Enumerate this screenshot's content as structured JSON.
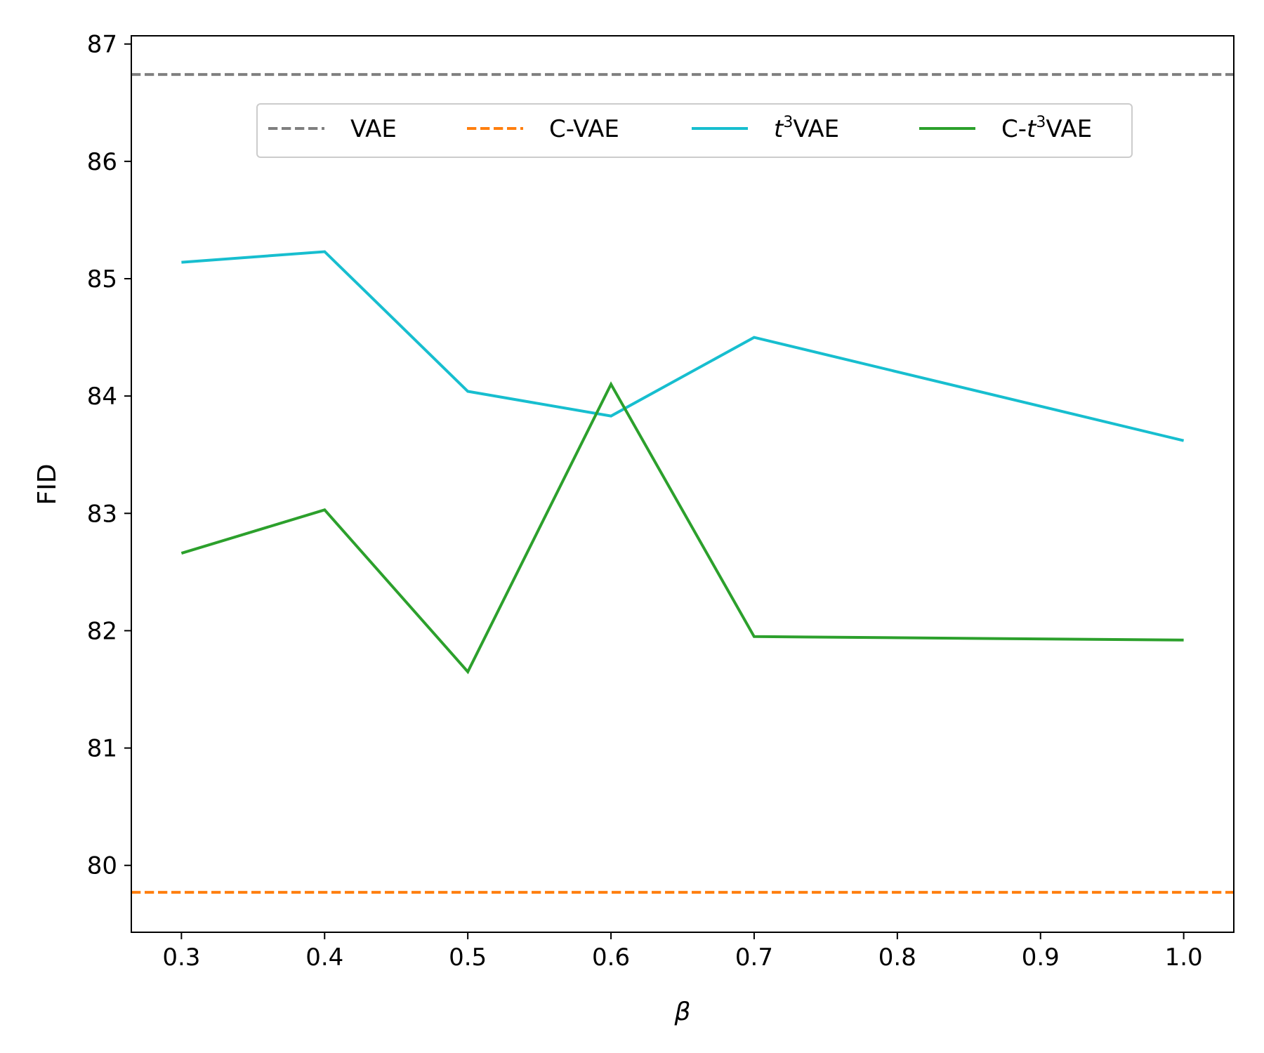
{
  "chart_data": {
    "type": "line",
    "title": "",
    "xlabel": "β",
    "ylabel": "FID",
    "xlim": [
      0.265,
      1.035
    ],
    "ylim": [
      79.43,
      87.07
    ],
    "x_ticks": [
      "0.3",
      "0.4",
      "0.5",
      "0.6",
      "0.7",
      "0.8",
      "0.9",
      "1.0"
    ],
    "y_ticks": [
      "80",
      "81",
      "82",
      "83",
      "84",
      "85",
      "86",
      "87"
    ],
    "grid": false,
    "legend": {
      "placement": "upper center",
      "columns": 4
    },
    "series": [
      {
        "name": "VAE",
        "label_parts": [
          "VAE"
        ],
        "kind": "hline",
        "style": "dashed",
        "color": "#7f7f7f",
        "y": 86.74
      },
      {
        "name": "C-VAE",
        "label_parts": [
          "C-VAE"
        ],
        "kind": "hline",
        "style": "dashed",
        "color": "#ff7f0e",
        "y": 79.77
      },
      {
        "name": "t3VAE",
        "label_parts": [
          "",
          "t",
          "3",
          "VAE"
        ],
        "kind": "line",
        "style": "solid",
        "color": "#17becf",
        "x": [
          0.3,
          0.4,
          0.5,
          0.6,
          0.7,
          1.0
        ],
        "y": [
          85.14,
          85.23,
          84.04,
          83.83,
          84.5,
          83.62
        ]
      },
      {
        "name": "C-t3VAE",
        "label_parts": [
          "C-",
          "t",
          "3",
          "VAE"
        ],
        "kind": "line",
        "style": "solid",
        "color": "#2ca02c",
        "x": [
          0.3,
          0.4,
          0.5,
          0.6,
          0.7,
          1.0
        ],
        "y": [
          82.66,
          83.03,
          81.65,
          84.1,
          81.95,
          81.92
        ]
      }
    ]
  }
}
